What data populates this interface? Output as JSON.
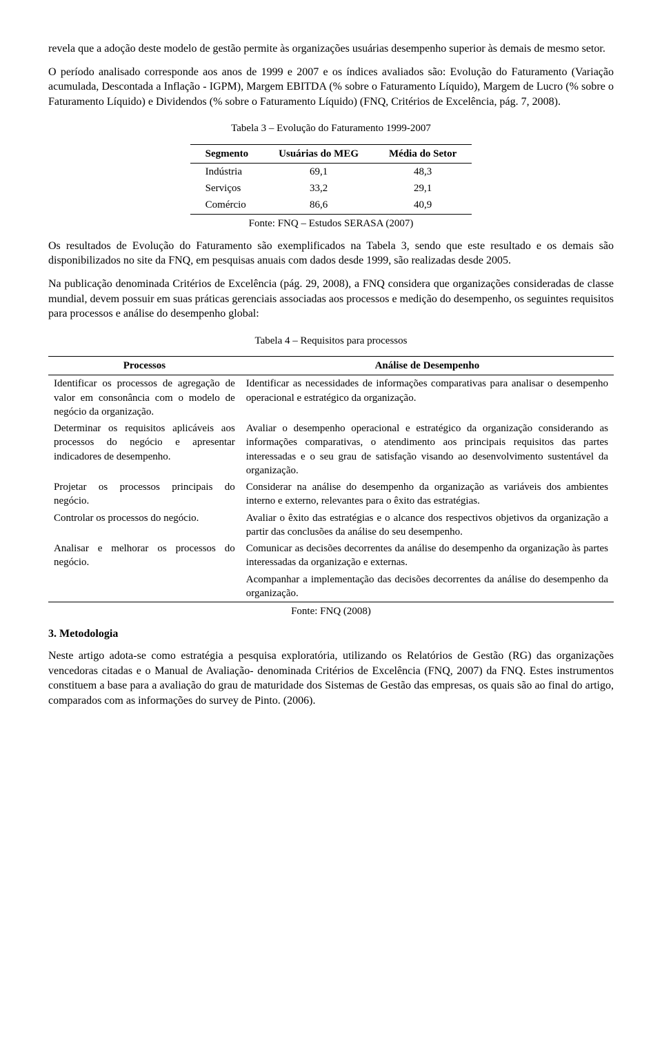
{
  "para1": "revela que a adoção deste modelo de gestão permite às organizações usuárias desempenho superior às demais de mesmo setor.",
  "para2": "O período analisado corresponde aos anos de 1999 e 2007 e os índices avaliados são: Evolução do Faturamento (Variação acumulada, Descontada a Inflação - IGPM), Margem EBITDA (% sobre o Faturamento Líquido), Margem de Lucro (% sobre o Faturamento Líquido) e Dividendos (% sobre o Faturamento Líquido) (FNQ, Critérios de Excelência, pág. 7, 2008).",
  "table3": {
    "caption": "Tabela 3 – Evolução do Faturamento 1999-2007",
    "headers": {
      "segmento": "Segmento",
      "usuarias": "Usuárias do MEG",
      "media": "Média do Setor"
    },
    "rows": [
      {
        "segmento": "Indústria",
        "usuarias": "69,1",
        "media": "48,3"
      },
      {
        "segmento": "Serviços",
        "usuarias": "33,2",
        "media": "29,1"
      },
      {
        "segmento": "Comércio",
        "usuarias": "86,6",
        "media": "40,9"
      }
    ],
    "source": "Fonte: FNQ – Estudos SERASA (2007)"
  },
  "para3": "Os resultados de Evolução do Faturamento são exemplificados na Tabela 3, sendo que este resultado e os demais são disponibilizados no site da FNQ, em pesquisas anuais com dados desde 1999, são realizadas desde 2005.",
  "para4": "Na publicação denominada Critérios de Excelência (pág. 29, 2008), a FNQ considera que organizações consideradas de classe mundial, devem possuir em suas práticas gerenciais associadas aos processos e medição do desempenho, os seguintes requisitos para processos e análise do desempenho global:",
  "table4": {
    "caption": "Tabela 4 – Requisitos para processos",
    "headers": {
      "processos": "Processos",
      "analise": "Análise de Desempenho"
    },
    "rows": [
      {
        "proc": "Identificar os processos de agregação de valor em consonância com o modelo de negócio da organização.",
        "anal": "Identificar as necessidades de informações comparativas para analisar o desempenho operacional e estratégico da organização."
      },
      {
        "proc": "Determinar os requisitos aplicáveis aos processos do negócio e apresentar indicadores de desempenho.",
        "anal": "Avaliar o desempenho operacional e estratégico da organização considerando as informações comparativas, o atendimento aos principais requisitos das partes interessadas e o seu grau de satisfação visando ao desenvolvimento sustentável da organização."
      },
      {
        "proc": "Projetar os processos principais do negócio.",
        "anal": "Considerar na análise do desempenho da organização as variáveis dos ambientes interno e externo, relevantes para o êxito das estratégias."
      },
      {
        "proc": "Controlar os processos do negócio.",
        "anal": "Avaliar o êxito das estratégias e o alcance dos respectivos objetivos da organização a partir das conclusões da análise do seu desempenho."
      },
      {
        "proc": "Analisar e melhorar os processos do negócio.",
        "anal": "Comunicar as decisões decorrentes da análise do desempenho da organização às partes interessadas da organização e externas."
      },
      {
        "proc": "",
        "anal": "Acompanhar a implementação das decisões decorrentes da análise do desempenho da organização."
      }
    ],
    "source": "Fonte: FNQ (2008)"
  },
  "section3": "3.  Metodologia",
  "para5": "Neste artigo adota-se como estratégia a pesquisa exploratória, utilizando os Relatórios de Gestão (RG) das organizações vencedoras citadas e o Manual de Avaliação- denominada Critérios de Excelência (FNQ, 2007) da FNQ. Estes instrumentos constituem a base para a avaliação do grau de maturidade dos Sistemas de Gestão das empresas, os quais são ao final do artigo, comparados com as informações do survey de Pinto. (2006)."
}
